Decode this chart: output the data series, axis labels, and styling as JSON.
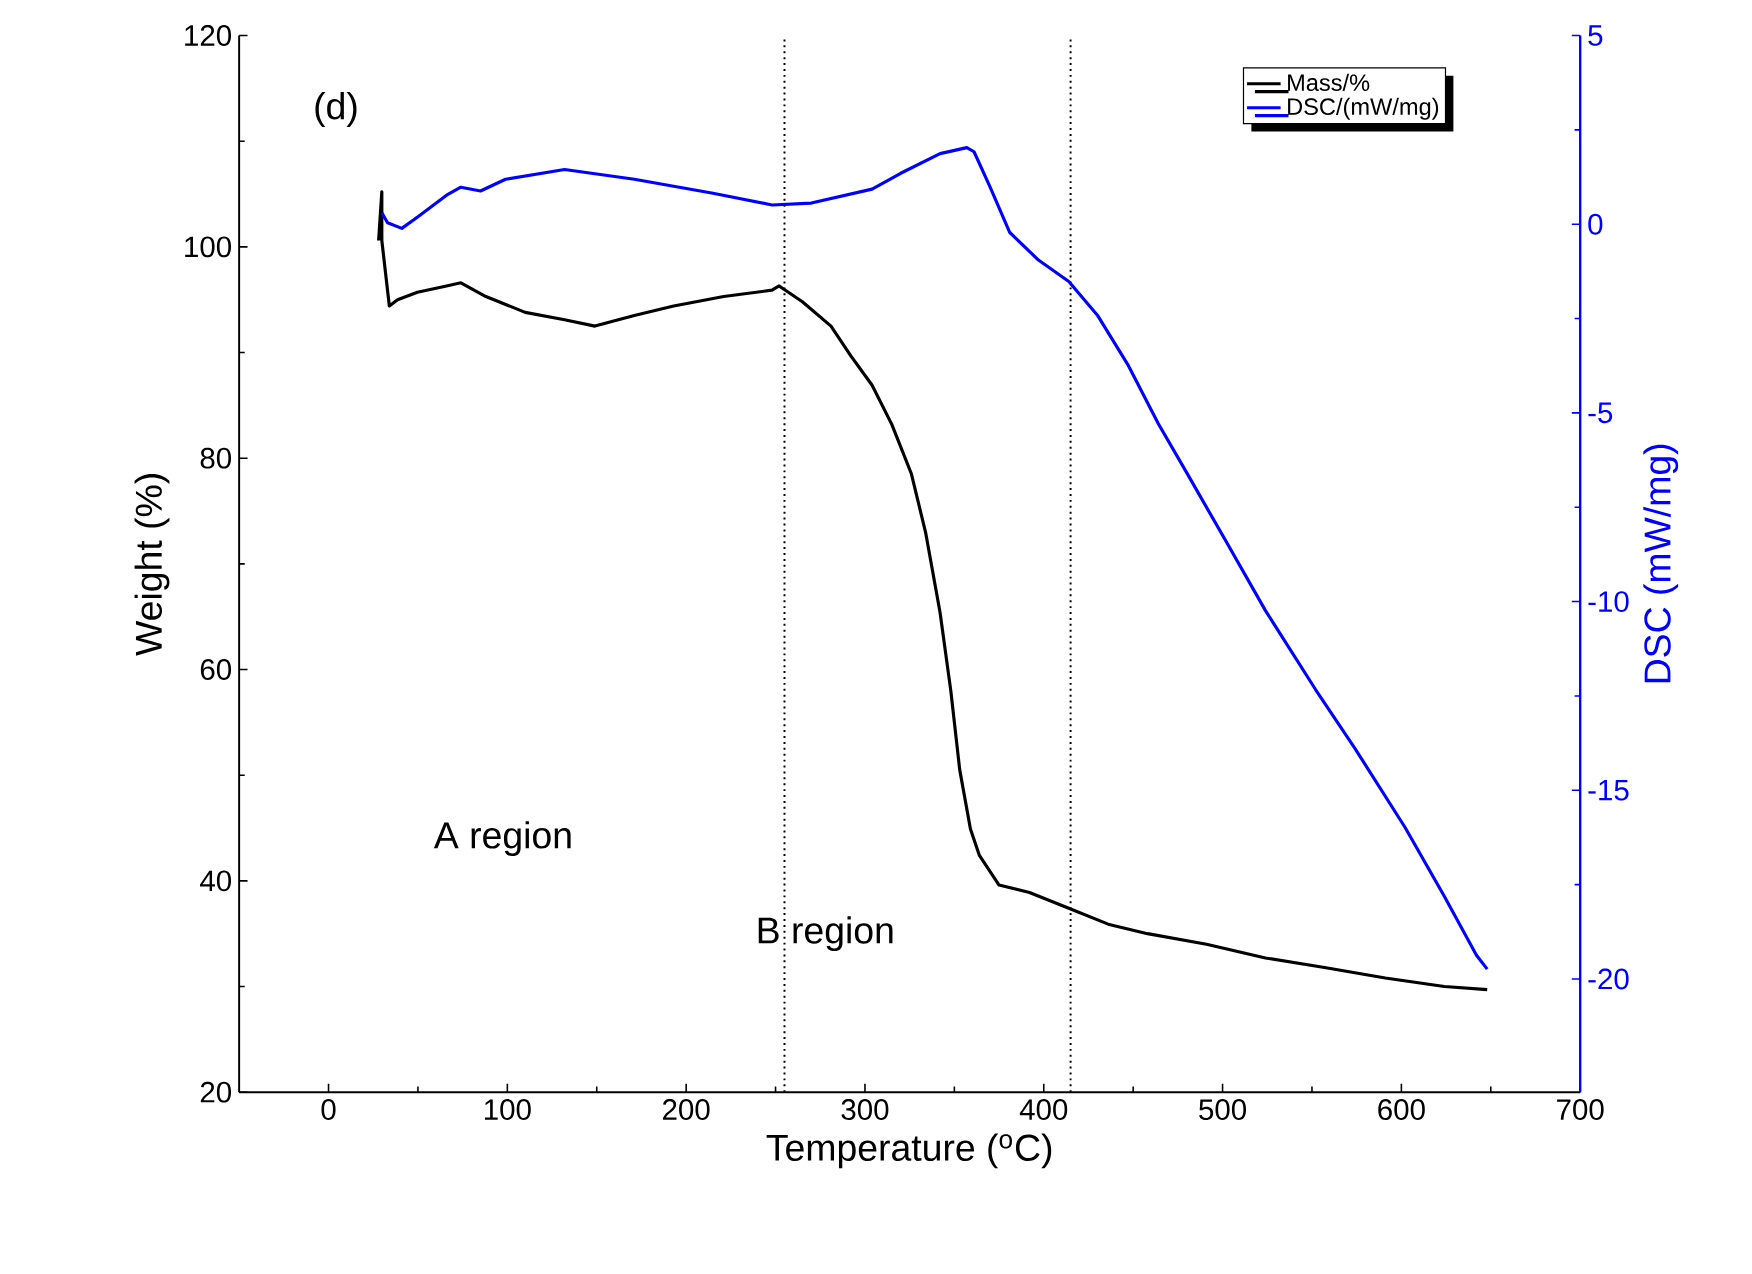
{
  "chart_data": {
    "type": "line",
    "xlabel": "Temperature ($^{o}$C)",
    "ylabel": "Weight (%)",
    "y2label": "DSC (mW/mg)",
    "xlim": [
      -50,
      700
    ],
    "xticks": [
      0,
      100,
      200,
      300,
      400,
      500,
      600,
      700
    ],
    "ylim": [
      20,
      120
    ],
    "yticks": [
      20,
      40,
      60,
      80,
      100,
      120
    ],
    "y2lim": [
      -23,
      5
    ],
    "y2ticks": [
      -20,
      -15,
      -10,
      -5,
      0,
      5
    ],
    "legend": "top right",
    "grid": false,
    "line_style": "solid",
    "marker": "none",
    "series": [
      {
        "name": "Mass/%",
        "color": "#000000",
        "x": [
          28,
          29.8,
          29.8,
          34,
          38.6,
          49.7,
          66,
          74,
          88,
          110,
          132,
          149,
          171,
          193,
          221,
          248,
          252,
          265,
          281,
          292,
          304,
          315,
          326,
          334,
          342,
          348,
          353,
          359,
          364,
          375,
          392,
          414,
          436,
          458,
          491,
          524,
          557,
          591,
          624,
          648
        ],
        "values": [
          100.6,
          105.2,
          100.6,
          94.4,
          95,
          95.7,
          96.3,
          96.6,
          95.3,
          93.8,
          93.1,
          92.5,
          93.5,
          94.4,
          95.3,
          95.9,
          96.3,
          94.8,
          92.5,
          89.7,
          86.9,
          83.2,
          78.5,
          72.9,
          65.4,
          58,
          50.5,
          44.9,
          42.4,
          39.6,
          38.9,
          37.4,
          35.9,
          35,
          34,
          32.7,
          31.8,
          30.8,
          30,
          29.7
        ]
      },
      {
        "name": "DSC/(mW/mg)",
        "color": "#0000ff",
        "axis": "y2",
        "x": [
          29.8,
          33,
          41,
          50,
          66,
          74,
          85,
          99,
          132,
          171,
          215,
          248,
          270,
          304,
          320,
          342,
          357,
          361,
          370,
          381,
          397,
          414,
          430,
          447,
          464,
          480,
          502,
          524,
          552,
          574,
          602,
          624,
          642,
          648
        ],
        "values": [
          0.3,
          0.04,
          -0.11,
          0.2,
          0.77,
          0.98,
          0.88,
          1.19,
          1.45,
          1.19,
          0.82,
          0.51,
          0.56,
          0.93,
          1.35,
          1.87,
          2.03,
          1.92,
          0.98,
          -0.22,
          -0.95,
          -1.52,
          -2.41,
          -3.72,
          -5.28,
          -6.59,
          -8.41,
          -10.24,
          -12.33,
          -13.89,
          -15.98,
          -17.81,
          -19.37,
          -19.74
        ]
      }
    ],
    "ref_lines": [
      {
        "axis": "x",
        "value": 255,
        "line_style": "dotted",
        "color": "#000000"
      },
      {
        "axis": "x",
        "value": 415,
        "line_style": "dotted",
        "color": "#000000"
      }
    ],
    "annotations": [
      "(d)",
      "A region",
      "B region"
    ]
  }
}
